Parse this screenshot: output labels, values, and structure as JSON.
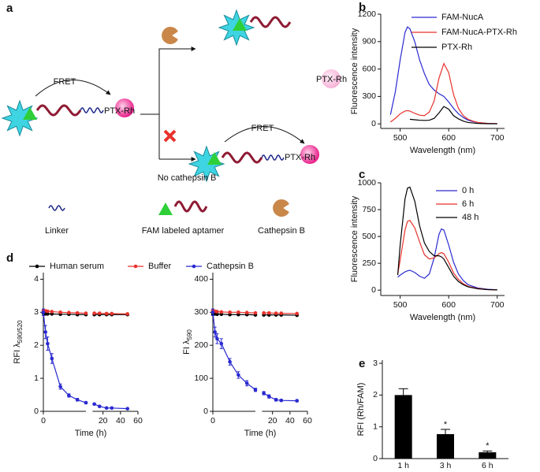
{
  "diagram": {
    "panel_label": "a",
    "fret_top": "FRET",
    "substrate": "PTX-Rh",
    "released": "PTX-Rh",
    "no_enzyme": "No cathepsin B",
    "fret_bottom": "FRET",
    "intact": "PTX-Rh",
    "legend": [
      "Linker",
      "FAM labeled aptamer",
      "Cathepsin B"
    ]
  },
  "chart_data": [
    {
      "type": "line",
      "panel_label": "b",
      "x_label": "Wavelength (nm)",
      "y_label": "Fluorescence intensity",
      "x": [
        480,
        490,
        500,
        510,
        515,
        520,
        530,
        540,
        550,
        560,
        570,
        580,
        590,
        600,
        610,
        620,
        630,
        640,
        650,
        660,
        680,
        700
      ],
      "xlim": [
        460,
        715
      ],
      "xticks": [
        500,
        600,
        700
      ],
      "ylim": [
        -50,
        1200
      ],
      "yticks": [
        0,
        300,
        600,
        900,
        1200
      ],
      "legend": true,
      "series": [
        {
          "name": "FAM-NucA",
          "color": "#2a2ad0",
          "values": [
            100,
            350,
            700,
            1000,
            1060,
            1040,
            900,
            700,
            550,
            430,
            370,
            330,
            300,
            240,
            170,
            110,
            70,
            40,
            25,
            15,
            5,
            2
          ]
        },
        {
          "name": "FAM-NucA-PTX-Rh",
          "color": "#e8322c",
          "values": [
            20,
            60,
            110,
            140,
            145,
            140,
            115,
            95,
            90,
            130,
            250,
            500,
            660,
            560,
            320,
            170,
            90,
            50,
            30,
            15,
            5,
            2
          ]
        },
        {
          "name": "PTX-Rh",
          "color": "#000000",
          "values": [
            null,
            null,
            null,
            null,
            null,
            50,
            45,
            40,
            38,
            40,
            60,
            120,
            190,
            160,
            90,
            55,
            30,
            15,
            10,
            5,
            2,
            1
          ]
        }
      ]
    },
    {
      "type": "line",
      "panel_label": "c",
      "x_label": "Wavelength (nm)",
      "y_label": "Fluorescence intensity",
      "x": [
        495,
        500,
        510,
        515,
        520,
        530,
        540,
        550,
        560,
        570,
        580,
        585,
        590,
        600,
        610,
        620,
        630,
        640,
        660,
        680,
        700
      ],
      "xlim": [
        460,
        715
      ],
      "xticks": [
        500,
        600,
        700
      ],
      "ylim": [
        -50,
        1000
      ],
      "yticks": [
        0,
        250,
        500,
        750,
        1000
      ],
      "legend": true,
      "series": [
        {
          "name": "0 h",
          "color": "#2a2ad0",
          "values": [
            120,
            140,
            170,
            180,
            185,
            165,
            130,
            110,
            150,
            300,
            520,
            570,
            560,
            420,
            260,
            150,
            90,
            50,
            20,
            8,
            3
          ]
        },
        {
          "name": "6 h",
          "color": "#e8322c",
          "values": [
            150,
            280,
            560,
            640,
            650,
            580,
            450,
            330,
            290,
            300,
            340,
            350,
            340,
            260,
            160,
            100,
            60,
            35,
            15,
            5,
            2
          ]
        },
        {
          "name": "48 h",
          "color": "#000000",
          "values": [
            140,
            420,
            850,
            950,
            960,
            830,
            600,
            440,
            360,
            320,
            320,
            310,
            290,
            210,
            130,
            80,
            50,
            30,
            12,
            5,
            2
          ]
        }
      ]
    },
    {
      "type": "line",
      "panel_label": "d",
      "x_label": "Time (h)",
      "y_label": "RFI λ",
      "y_label_sub": "590/520",
      "markers": true,
      "legend": true,
      "x": [
        0,
        0.25,
        0.5,
        1,
        2,
        3,
        4,
        5,
        10,
        16,
        24,
        30,
        48
      ],
      "xlim": [
        0,
        60
      ],
      "x_break": [
        5,
        8
      ],
      "xticks": [
        0,
        20,
        40,
        60
      ],
      "ylim": [
        0,
        4.2
      ],
      "yticks": [
        0,
        1,
        2,
        3,
        4
      ],
      "series": [
        {
          "name": "Human serum",
          "color": "#000000",
          "values": [
            2.97,
            2.95,
            2.95,
            2.95,
            2.94,
            2.94,
            2.93,
            2.93,
            2.93,
            2.93,
            2.93,
            2.93,
            2.93
          ]
        },
        {
          "name": "Buffer",
          "color": "#e8322c",
          "values": [
            3.05,
            3.04,
            3.03,
            3.02,
            3.0,
            2.99,
            2.98,
            2.97,
            2.97,
            2.97,
            2.96,
            2.96,
            2.95
          ]
        },
        {
          "name": "Cathepsin B",
          "color": "#2a2ad0",
          "values": [
            3.0,
            2.4,
            2.05,
            1.6,
            0.75,
            0.48,
            0.35,
            0.26,
            0.22,
            0.15,
            0.1,
            0.1,
            0.08
          ],
          "errors": [
            0.1,
            0.2,
            0.2,
            0.15,
            0.08,
            0.05,
            0.04,
            0.03,
            0.03,
            0.02,
            0.02,
            0.02,
            0.02
          ]
        }
      ]
    },
    {
      "type": "line",
      "x_label": "Time (h)",
      "y_label": "FI λ",
      "y_label_sub": "590",
      "markers": true,
      "x": [
        0,
        0.25,
        0.5,
        1,
        2,
        3,
        4,
        5,
        10,
        16,
        24,
        30,
        48
      ],
      "xlim": [
        0,
        60
      ],
      "x_break": [
        5,
        8
      ],
      "xticks": [
        0,
        20,
        40,
        60
      ],
      "ylim": [
        0,
        420
      ],
      "yticks": [
        0,
        100,
        200,
        300,
        400
      ],
      "series": [
        {
          "color": "#000000",
          "values": [
            295,
            295,
            294,
            294,
            293,
            293,
            293,
            292,
            292,
            292,
            292,
            292,
            291
          ]
        },
        {
          "color": "#e8322c",
          "values": [
            305,
            303,
            302,
            301,
            300,
            300,
            299,
            298,
            298,
            298,
            297,
            297,
            296
          ]
        },
        {
          "color": "#2a2ad0",
          "values": [
            300,
            240,
            220,
            205,
            150,
            110,
            85,
            65,
            55,
            45,
            35,
            33,
            32
          ],
          "errors": [
            10,
            15,
            15,
            15,
            10,
            10,
            8,
            5,
            5,
            5,
            4,
            3,
            3
          ]
        }
      ]
    },
    {
      "type": "bar",
      "panel_label": "e",
      "y_label": "RFI (Rh/FAM)",
      "categories": [
        "1 h",
        "3 h",
        "6 h"
      ],
      "values": [
        2.0,
        0.77,
        0.2
      ],
      "errors": [
        0.2,
        0.15,
        0.04
      ],
      "significance": [
        null,
        "*",
        "*"
      ],
      "ylim": [
        0,
        3.1
      ],
      "yticks": [
        0,
        1,
        2,
        3
      ],
      "color": "#000000"
    }
  ]
}
